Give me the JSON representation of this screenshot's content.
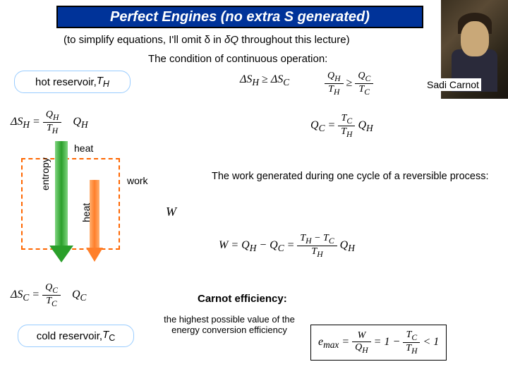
{
  "title": "Perfect Engines (no extra S generated)",
  "subtitle_pre": "(to simplify equations, I'll omit ",
  "subtitle_mid": " in ",
  "subtitle_post": " throughout this lecture)",
  "delta": "δ",
  "dQ": "δQ",
  "condition": "The condition of continuous operation:",
  "hot_label_pre": "hot reservoir, ",
  "hot_T": "T",
  "hot_sub": "H",
  "cold_label_pre": "cold reservoir, ",
  "cold_T": "T",
  "cold_sub": "C",
  "sadi": "Sadi Carnot",
  "heat": "heat",
  "entropy": "entropy",
  "work": "work",
  "work_text": "The work generated during one cycle of a reversible process:",
  "carnot_eff": "Carnot efficiency:",
  "eff_note": "the highest possible value of the energy conversion efficiency",
  "eq": {
    "DSH": "ΔS",
    "H": "H",
    "C": "C",
    "eq": " = ",
    "ge": " ≥ ",
    "QH": "Q",
    "TH": "T",
    "QC": "Q",
    "TC": "T",
    "W": "W",
    "one": "1",
    "lt1": " < 1",
    "minus": " − ",
    "emax": "e",
    "max": "max"
  },
  "colors": {
    "title_bg": "#003399",
    "green": "#2a9f2a",
    "orange": "#ff7f2a",
    "dash": "#ff6600",
    "res_border": "#99ccff"
  }
}
